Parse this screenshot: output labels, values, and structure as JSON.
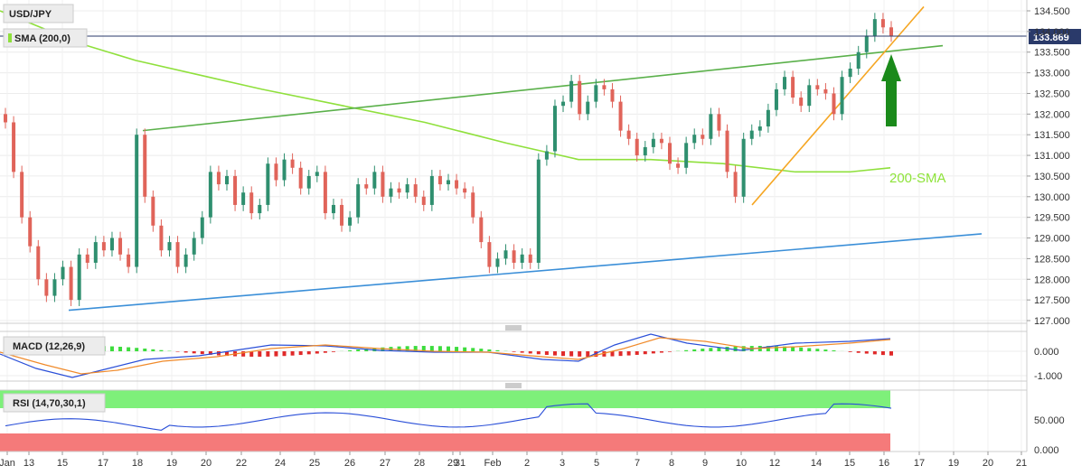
{
  "chart_data": {
    "type": "candlestick",
    "symbol": "USD/JPY",
    "x_ticks": [
      "Jan",
      "13",
      "15",
      "17",
      "18",
      "19",
      "20",
      "22",
      "24",
      "25",
      "26",
      "27",
      "28",
      "29",
      "31",
      "Feb",
      "2",
      "3",
      "5",
      "7",
      "8",
      "9",
      "10",
      "12",
      "14",
      "15",
      "16",
      "17",
      "19",
      "20",
      "21"
    ],
    "y_ticks": [
      "134.500",
      "134.000",
      "133.500",
      "133.000",
      "132.500",
      "132.000",
      "131.500",
      "131.000",
      "130.500",
      "130.000",
      "129.500",
      "129.000",
      "128.500",
      "128.000",
      "127.500",
      "127.000"
    ],
    "ylim": [
      126.9,
      134.8
    ],
    "current_price": "133.869",
    "sma": {
      "label": "SMA (200,0)",
      "annotation": "200-SMA",
      "color": "#8fe03c"
    },
    "annotations": [
      "200-SMA"
    ],
    "macd": {
      "label": "MACD (12,26,9)",
      "ticks": [
        "0.000",
        "-1.000"
      ]
    },
    "rsi": {
      "label": "RSI (14,70,30,1)",
      "ticks": [
        "50.000",
        "0.000"
      ],
      "upper": 70,
      "lower": 30
    },
    "colors": {
      "up": "#2f8f6f",
      "down": "#e0645a",
      "trend_green": "#5ab04a",
      "trend_orange": "#f5a623",
      "trend_blue": "#3b8fd8",
      "arrow": "#1a8a1a",
      "macd_line": "#2a4fd8",
      "signal_line": "#f08a2a",
      "rsi_line": "#2a4fd8",
      "rsi_over": "#7ef07a",
      "rsi_under": "#f57a7a",
      "price_tag": "#2a3a6a"
    }
  }
}
